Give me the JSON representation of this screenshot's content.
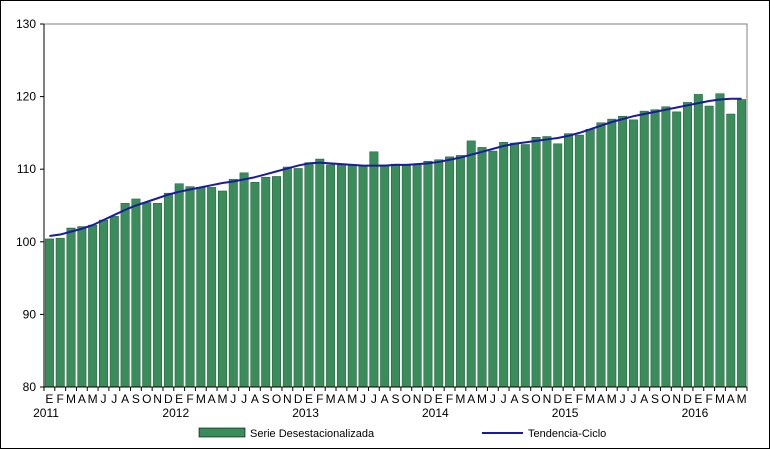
{
  "chart_data": {
    "type": "bar",
    "title": "",
    "xlabel": "",
    "ylabel": "",
    "ylim": [
      80,
      130
    ],
    "yticks": [
      80,
      90,
      100,
      110,
      120,
      130
    ],
    "grid": false,
    "legend_position": "bottom",
    "month_tick_labels": [
      "E",
      "F",
      "M",
      "A",
      "M",
      "J",
      "J",
      "A",
      "S",
      "O",
      "N",
      "D",
      "E",
      "F",
      "M",
      "A",
      "M",
      "J",
      "J",
      "A",
      "S",
      "O",
      "N",
      "D",
      "E",
      "F",
      "M",
      "A",
      "M",
      "J",
      "J",
      "A",
      "S",
      "O",
      "N",
      "D",
      "E",
      "F",
      "M",
      "A",
      "M",
      "J",
      "J",
      "A",
      "S",
      "O",
      "N",
      "D",
      "E",
      "F",
      "M",
      "A",
      "M",
      "J",
      "J",
      "A",
      "S",
      "O",
      "N",
      "D",
      "E",
      "F",
      "M",
      "A",
      "M"
    ],
    "year_tick_labels": [
      {
        "label": "2011",
        "index": 0
      },
      {
        "label": "2012",
        "index": 12
      },
      {
        "label": "2013",
        "index": 24
      },
      {
        "label": "2014",
        "index": 36
      },
      {
        "label": "2015",
        "index": 48
      },
      {
        "label": "2016",
        "index": 60
      }
    ],
    "series": [
      {
        "name": "Serie Desestacionalizada",
        "type": "bar",
        "color": "#3a8c5a",
        "values": [
          100.4,
          100.5,
          101.9,
          102.1,
          102.3,
          103.0,
          103.5,
          105.3,
          105.9,
          105.4,
          105.3,
          106.7,
          108.0,
          107.6,
          107.5,
          107.5,
          107.0,
          108.6,
          109.5,
          108.2,
          108.9,
          109.0,
          110.3,
          110.1,
          110.9,
          111.4,
          110.6,
          110.6,
          110.6,
          110.5,
          112.4,
          110.6,
          110.7,
          110.5,
          110.6,
          111.1,
          111.3,
          111.7,
          111.9,
          113.9,
          113.0,
          112.5,
          113.7,
          113.6,
          113.4,
          114.4,
          114.5,
          113.5,
          114.9,
          114.7,
          115.5,
          116.4,
          116.9,
          117.3,
          116.8,
          118.0,
          118.2,
          118.6,
          117.9,
          119.2,
          120.3,
          118.7,
          120.4,
          117.6,
          119.6
        ]
      },
      {
        "name": "Tendencia-Ciclo",
        "type": "line",
        "color": "#1a1aa0",
        "values": [
          100.8,
          101.0,
          101.4,
          101.8,
          102.3,
          103.0,
          103.7,
          104.4,
          105.0,
          105.5,
          106.0,
          106.5,
          106.9,
          107.2,
          107.5,
          107.8,
          108.1,
          108.3,
          108.6,
          108.9,
          109.3,
          109.7,
          110.1,
          110.5,
          110.8,
          110.9,
          110.8,
          110.7,
          110.6,
          110.5,
          110.5,
          110.5,
          110.6,
          110.6,
          110.7,
          110.8,
          111.0,
          111.3,
          111.6,
          112.0,
          112.4,
          112.8,
          113.2,
          113.5,
          113.7,
          113.9,
          114.1,
          114.3,
          114.6,
          115.0,
          115.5,
          116.0,
          116.5,
          116.9,
          117.3,
          117.6,
          117.9,
          118.2,
          118.5,
          118.8,
          119.1,
          119.4,
          119.6,
          119.7,
          119.7
        ]
      }
    ]
  }
}
